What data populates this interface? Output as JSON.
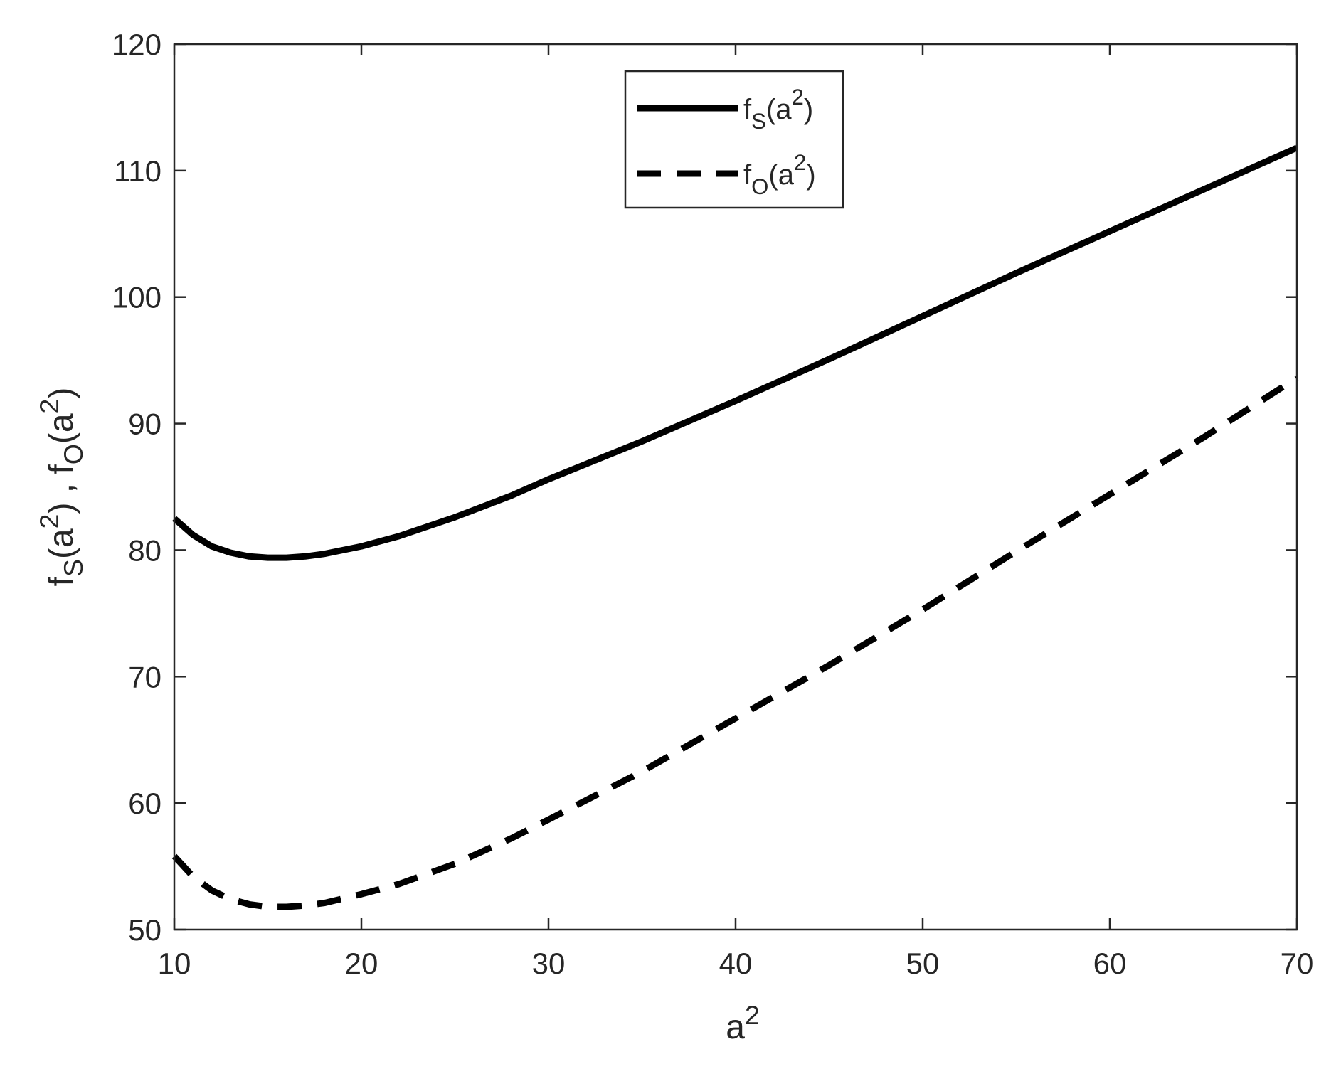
{
  "chart_data": {
    "type": "line",
    "xlabel": {
      "base": "a",
      "sup": "2"
    },
    "ylabel": [
      {
        "t": "f"
      },
      {
        "t": "S",
        "sub": true
      },
      {
        "t": "(a"
      },
      {
        "t": "2",
        "sup": true
      },
      {
        "t": ") , f"
      },
      {
        "t": "O",
        "sub": true
      },
      {
        "t": "(a"
      },
      {
        "t": "2",
        "sup": true
      },
      {
        "t": ")"
      }
    ],
    "xlim": [
      10,
      70
    ],
    "ylim": [
      50,
      120
    ],
    "xticks": [
      10,
      20,
      30,
      40,
      50,
      60,
      70
    ],
    "yticks": [
      50,
      60,
      70,
      80,
      90,
      100,
      110,
      120
    ],
    "grid": false,
    "legend": {
      "position": "top-center"
    },
    "series": [
      {
        "label": [
          {
            "t": "f"
          },
          {
            "t": "S",
            "sub": true
          },
          {
            "t": "(a"
          },
          {
            "t": "2",
            "sup": true
          },
          {
            "t": ")"
          }
        ],
        "style": "solid",
        "color": "#000000",
        "x": [
          10,
          11,
          12,
          13,
          14,
          15,
          16,
          17,
          18,
          20,
          22,
          25,
          28,
          30,
          35,
          40,
          45,
          50,
          55,
          60,
          65,
          70
        ],
        "y": [
          82.5,
          81.2,
          80.3,
          79.8,
          79.5,
          79.4,
          79.4,
          79.5,
          79.7,
          80.3,
          81.1,
          82.6,
          84.3,
          85.6,
          88.6,
          91.8,
          95.1,
          98.5,
          101.9,
          105.2,
          108.5,
          111.8
        ]
      },
      {
        "label": [
          {
            "t": "f"
          },
          {
            "t": "O",
            "sub": true
          },
          {
            "t": "(a"
          },
          {
            "t": "2",
            "sup": true
          },
          {
            "t": ")"
          }
        ],
        "style": "dashed",
        "color": "#000000",
        "x": [
          10,
          11,
          12,
          13,
          14,
          15,
          16,
          17,
          18,
          20,
          22,
          25,
          28,
          30,
          35,
          40,
          45,
          50,
          55,
          60,
          65,
          70
        ],
        "y": [
          55.8,
          54.2,
          53.1,
          52.4,
          52.0,
          51.8,
          51.8,
          51.9,
          52.1,
          52.8,
          53.6,
          55.2,
          57.2,
          58.7,
          62.5,
          66.7,
          70.9,
          75.3,
          79.9,
          84.4,
          88.9,
          93.6
        ]
      }
    ]
  }
}
